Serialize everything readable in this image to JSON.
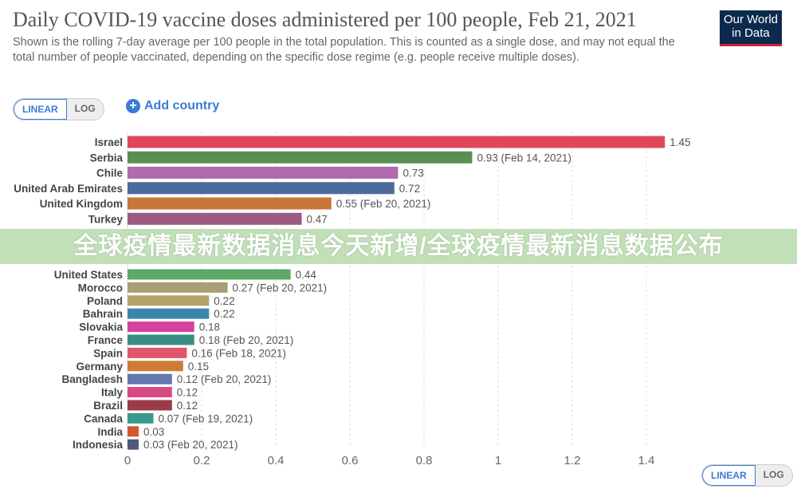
{
  "header": {
    "title": "Daily COVID-19 vaccine doses administered per 100 people, Feb 21, 2021",
    "subtitle": "Shown is the rolling 7-day average per 100 people in the total population. This is counted as a single dose, and may not equal the total number of people vaccinated, depending on the specific dose regime (e.g. people receive multiple doses).",
    "logo_line1": "Our World",
    "logo_line2": "in Data"
  },
  "controls": {
    "linear": "LINEAR",
    "log": "LOG",
    "add_country": "Add country"
  },
  "banner": "全球疫情最新数据消息今天新增/全球疫情最新消息数据公布",
  "chart_data": {
    "type": "bar",
    "orientation": "horizontal",
    "title": "Daily COVID-19 vaccine doses administered per 100 people, Feb 21, 2021",
    "xlim": [
      0,
      1.4
    ],
    "xticks": [
      "0",
      "0.2",
      "0.4",
      "0.6",
      "0.8",
      "1",
      "1.2",
      "1.4"
    ],
    "grid": true,
    "categories": [
      "Israel",
      "Serbia",
      "Chile",
      "United Arab Emirates",
      "United Kingdom",
      "Turkey",
      "United States",
      "Morocco",
      "Poland",
      "Bahrain",
      "Slovakia",
      "France",
      "Spain",
      "Germany",
      "Bangladesh",
      "Italy",
      "Brazil",
      "Canada",
      "India",
      "Indonesia"
    ],
    "values": [
      1.45,
      0.93,
      0.73,
      0.72,
      0.55,
      0.47,
      0.44,
      0.27,
      0.22,
      0.22,
      0.18,
      0.18,
      0.16,
      0.15,
      0.12,
      0.12,
      0.12,
      0.07,
      0.03,
      0.03
    ],
    "labels": [
      "1.45",
      "0.93 (Feb 14, 2021)",
      "0.73",
      "0.72",
      "0.55 (Feb 20, 2021)",
      "0.47",
      "0.44",
      "0.27 (Feb 20, 2021)",
      "0.22",
      "0.22",
      "0.18",
      "0.18 (Feb 20, 2021)",
      "0.16 (Feb 18, 2021)",
      "0.15",
      "0.12 (Feb 20, 2021)",
      "0.12",
      "0.12",
      "0.07 (Feb 19, 2021)",
      "0.03",
      "0.03 (Feb 20, 2021)"
    ],
    "colors": [
      "#e0475a",
      "#5b8e53",
      "#b06aad",
      "#4c6a9c",
      "#c8743a",
      "#9b5a82",
      "#5fa868",
      "#a99e74",
      "#b3a46a",
      "#3a87ad",
      "#d6429d",
      "#3a8d83",
      "#e0566c",
      "#d07a34",
      "#6477b0",
      "#d84882",
      "#9b3c4a",
      "#3a9a8f",
      "#d2582b",
      "#4d5a7a"
    ]
  }
}
